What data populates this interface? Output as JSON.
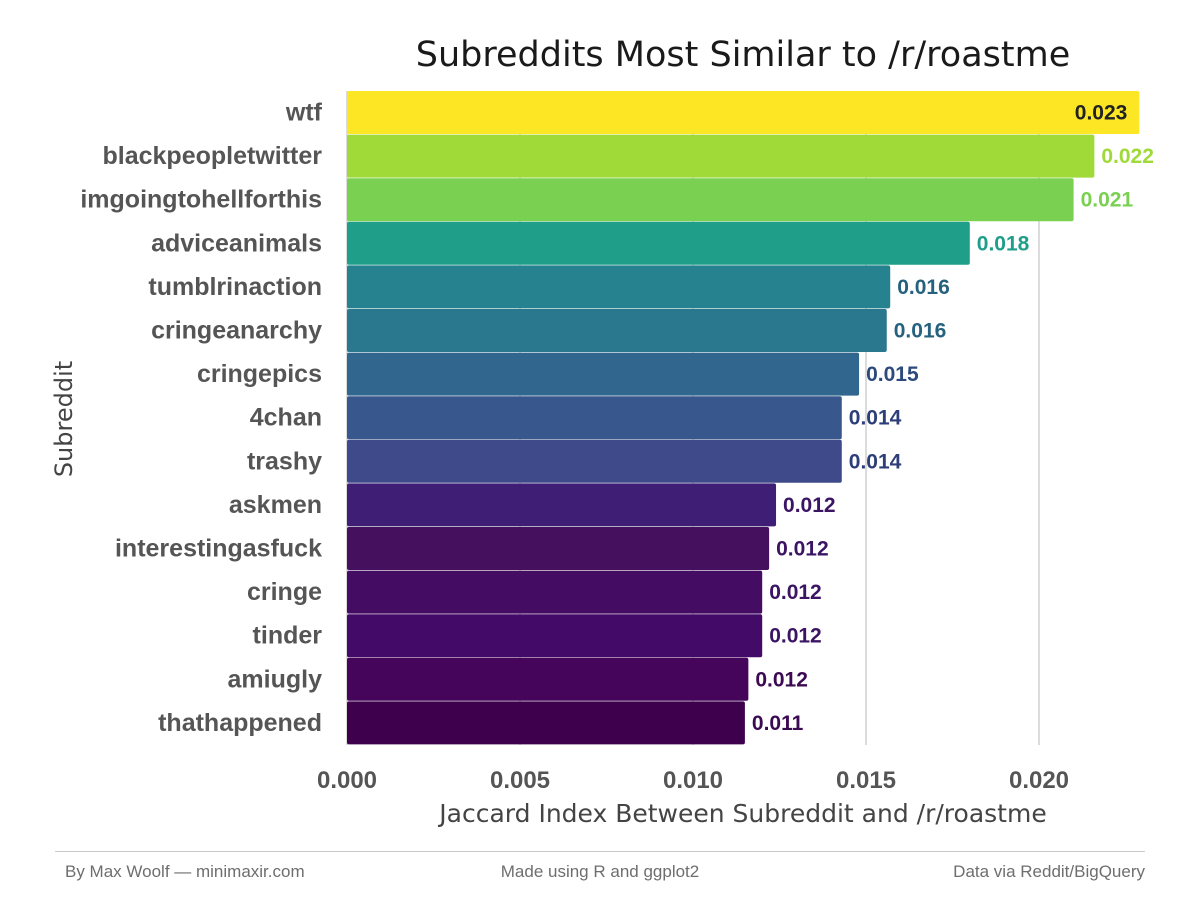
{
  "chart_data": {
    "type": "bar",
    "orientation": "horizontal",
    "title": "Subreddits Most Similar to /r/roastme",
    "xlabel": "Jaccard Index Between Subreddit and /r/roastme",
    "ylabel": "Subreddit",
    "xlim": [
      0,
      0.0232
    ],
    "x_ticks": [
      "0.000",
      "0.005",
      "0.010",
      "0.015",
      "0.020"
    ],
    "grid": "vertical major",
    "categories": [
      "wtf",
      "blackpeopletwitter",
      "imgoingtohellforthis",
      "adviceanimals",
      "tumblrinaction",
      "cringeanarchy",
      "cringepics",
      "4chan",
      "trashy",
      "askmen",
      "interestingasfuck",
      "cringe",
      "tinder",
      "amiugly",
      "thathappened"
    ],
    "values": [
      0.0229,
      0.0216,
      0.021,
      0.018,
      0.0157,
      0.0156,
      0.0148,
      0.0143,
      0.0143,
      0.0124,
      0.0122,
      0.012,
      0.012,
      0.0116,
      0.0115
    ],
    "labels": [
      "0.023",
      "0.022",
      "0.021",
      "0.018",
      "0.016",
      "0.016",
      "0.015",
      "0.014",
      "0.014",
      "0.012",
      "0.012",
      "0.012",
      "0.012",
      "0.012",
      "0.011"
    ],
    "colors": [
      "#FDE725",
      "#A0DA39",
      "#7AD151",
      "#1F9E89",
      "#26828E",
      "#2A788E",
      "#31668E",
      "#38578C",
      "#3E4A89",
      "#3F1F75",
      "#45105E",
      "#440C62",
      "#440A68",
      "#44055A",
      "#3E004C"
    ],
    "label_colors": [
      "#222222",
      "#A0DA39",
      "#7AD151",
      "#1F9E89",
      "#26617E",
      "#26617E",
      "#2D4A7C",
      "#2D3E78",
      "#2D3E78",
      "#3B1464",
      "#3B1464",
      "#3B1464",
      "#3B1464",
      "#3B0A52",
      "#3B0A52"
    ],
    "grid_color": "#d4d4d4"
  },
  "footer": {
    "left": "By Max Woolf — minimaxir.com",
    "center": "Made using R and ggplot2",
    "right": "Data via Reddit/BigQuery"
  }
}
